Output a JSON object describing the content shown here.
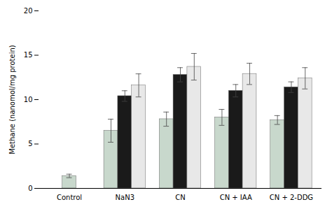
{
  "chart_data": {
    "type": "bar",
    "categories": [
      "Control",
      "NaN3",
      "CN",
      "CN + IAA",
      "CN + 2-DDG"
    ],
    "series": [
      {
        "color": "#c8d8cc",
        "values": [
          1.4,
          6.5,
          7.8,
          8.0,
          7.7
        ],
        "errors": [
          0.2,
          1.3,
          0.8,
          0.9,
          0.5
        ]
      },
      {
        "color": "#1a1a1a",
        "values": [
          null,
          10.4,
          12.8,
          11.0,
          11.4
        ],
        "errors": [
          null,
          0.6,
          0.8,
          0.7,
          0.6
        ]
      },
      {
        "color": "#e8e8e8",
        "values": [
          null,
          11.6,
          13.7,
          12.9,
          12.4
        ],
        "errors": [
          null,
          1.3,
          1.5,
          1.2,
          1.2
        ]
      }
    ],
    "ylabel": "Methane (nanomol/mg protein)",
    "ylim": [
      0,
      20
    ],
    "yticks": [
      0,
      5,
      10,
      15,
      20
    ],
    "grid": false
  }
}
